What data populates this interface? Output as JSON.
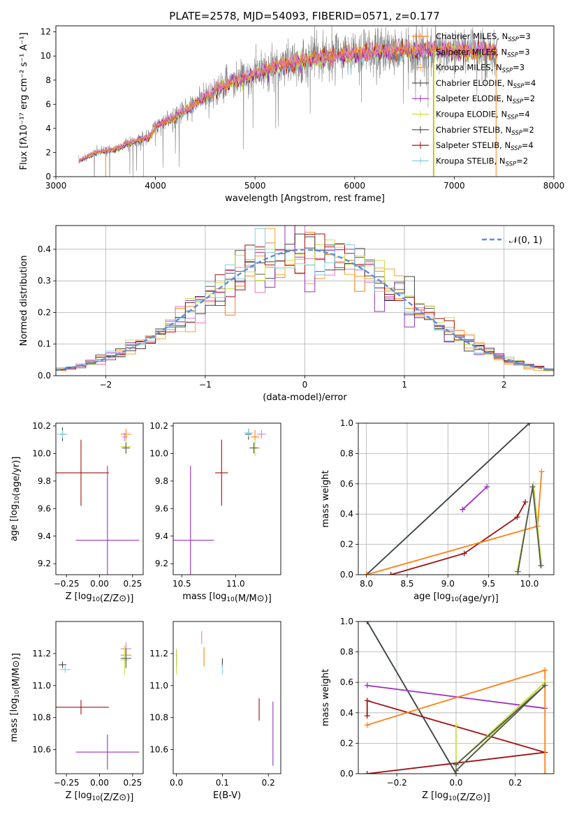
{
  "figure_title": "PLATE=2578, MJD=54093, FIBERID=0571, z=0.177",
  "colors": {
    "Chabrier MILES": "#ff7f0e",
    "Salpeter MILES": "#e377c2",
    "Kroupa MILES": "#ff9f2e",
    "Chabrier ELODIE": "#555555",
    "Salpeter ELODIE": "#9b30c0",
    "Kroupa ELODIE": "#c8e040",
    "Chabrier STELIB": "#404040",
    "Salpeter STELIB": "#a01010",
    "Kroupa STELIB": "#80d0e0",
    "data": "#808080",
    "normal": "#5b8fd6"
  },
  "chart_data": [
    {
      "type": "line",
      "title": "PLATE=2578, MJD=54093, FIBERID=0571, z=0.177",
      "xlabel": "wavelength [Angstrom, rest frame]",
      "ylabel": "Flux [fλ10⁻¹⁷ erg cm⁻² s⁻¹ A⁻¹]",
      "xlim": [
        3000,
        8000
      ],
      "ylim": [
        0,
        12.5
      ],
      "xticks": [
        3000,
        4000,
        5000,
        6000,
        7000,
        8000
      ],
      "yticks": [
        0,
        2,
        4,
        6,
        8,
        10,
        12
      ],
      "grid": false,
      "legend": "top-right",
      "legend_entries": [
        "Chabrier MILES, N",
        "Salpeter MILES, N",
        "Kroupa MILES, N",
        "Chabrier ELODIE, N",
        "Salpeter ELODIE, N",
        "Kroupa ELODIE, N",
        "Chabrier STELIB, N",
        "Salpeter STELIB, N",
        "Kroupa STELIB, N"
      ],
      "legend_sub": "SSP",
      "legend_n": [
        3,
        3,
        3,
        4,
        2,
        4,
        2,
        4,
        2
      ],
      "continuum": [
        [
          3230,
          1.3
        ],
        [
          3400,
          2.0
        ],
        [
          3600,
          2.3
        ],
        [
          3800,
          3.0
        ],
        [
          3950,
          3.3
        ],
        [
          4000,
          4.2
        ],
        [
          4200,
          5.0
        ],
        [
          4400,
          6.0
        ],
        [
          4700,
          7.7
        ],
        [
          5000,
          8.5
        ],
        [
          5300,
          9.3
        ],
        [
          5700,
          9.9
        ],
        [
          6000,
          10.2
        ],
        [
          6400,
          10.4
        ],
        [
          6600,
          10.5
        ],
        [
          6900,
          10.5
        ],
        [
          7200,
          10.4
        ],
        [
          7430,
          10.3
        ]
      ],
      "spectrum_range": [
        3230,
        7430
      ]
    },
    {
      "type": "bar",
      "xlabel": "(data-model)/error",
      "ylabel": "Normed distribution",
      "xlim": [
        -2.5,
        2.5
      ],
      "ylim": [
        0,
        0.475
      ],
      "xticks": [
        -2,
        -1,
        0,
        1,
        2
      ],
      "yticks": [
        0.0,
        0.1,
        0.2,
        0.3,
        0.4
      ],
      "grid": true,
      "legend": "top-right",
      "legend_label": "𝒩(0, 1)",
      "bins": 50,
      "bin_width": 0.1
    },
    {
      "type": "scatter",
      "xlabel": "Z [log10(Z/Z⊙)]",
      "ylabel": "age  [log10(age/yr)]",
      "xlim": [
        -0.33,
        0.33
      ],
      "ylim": [
        9.12,
        10.22
      ],
      "xticks": [
        -0.25,
        0.0,
        0.25
      ],
      "yticks": [
        9.2,
        9.4,
        9.6,
        9.8,
        10.0,
        10.2
      ],
      "grid": false,
      "points": [
        {
          "x": 0.06,
          "y": 9.37,
          "xerr": 0.24,
          "yerr": 0.54,
          "series": "Salpeter ELODIE"
        },
        {
          "x": -0.14,
          "y": 9.86,
          "xerr": 0.21,
          "yerr": 0.24,
          "series": "Salpeter STELIB"
        },
        {
          "x": -0.28,
          "y": 10.14,
          "xerr": 0.02,
          "yerr": 0.05,
          "series": "Chabrier STELIB"
        },
        {
          "x": -0.28,
          "y": 10.14,
          "xerr": 0.04,
          "yerr": 0.03,
          "series": "Kroupa STELIB"
        },
        {
          "x": 0.2,
          "y": 10.14,
          "xerr": 0.04,
          "yerr": 0.04,
          "series": "Chabrier MILES"
        },
        {
          "x": 0.19,
          "y": 10.12,
          "xerr": 0.02,
          "yerr": 0.03,
          "series": "Salpeter MILES"
        },
        {
          "x": 0.2,
          "y": 10.05,
          "xerr": 0.04,
          "yerr": 0.06,
          "series": "Kroupa ELODIE"
        },
        {
          "x": 0.2,
          "y": 10.04,
          "xerr": 0.03,
          "yerr": 0.04,
          "series": "Chabrier ELODIE"
        }
      ]
    },
    {
      "type": "scatter",
      "xlabel": "mass [log10(M/M⊙)]",
      "xlim": [
        10.42,
        11.42
      ],
      "ylim": [
        9.12,
        10.22
      ],
      "xticks": [
        10.5,
        11.0
      ],
      "yticks": [
        9.2,
        9.4,
        9.6,
        9.8,
        10.0,
        10.2
      ],
      "grid": false,
      "points": [
        {
          "x": 10.58,
          "y": 9.37,
          "xerr": 0.22,
          "yerr": 0.54,
          "series": "Salpeter ELODIE"
        },
        {
          "x": 10.87,
          "y": 9.86,
          "xerr": 0.06,
          "yerr": 0.24,
          "series": "Salpeter STELIB"
        },
        {
          "x": 11.12,
          "y": 10.14,
          "xerr": 0.03,
          "yerr": 0.04,
          "series": "Chabrier STELIB"
        },
        {
          "x": 11.12,
          "y": 10.15,
          "xerr": 0.04,
          "yerr": 0.03,
          "series": "Kroupa STELIB"
        },
        {
          "x": 11.24,
          "y": 10.14,
          "xerr": 0.04,
          "yerr": 0.03,
          "series": "Salpeter MILES"
        },
        {
          "x": 11.18,
          "y": 10.12,
          "xerr": 0.04,
          "yerr": 0.05,
          "series": "Chabrier MILES"
        },
        {
          "x": 11.18,
          "y": 10.04,
          "xerr": 0.05,
          "yerr": 0.06,
          "series": "Kroupa ELODIE"
        },
        {
          "x": 11.17,
          "y": 10.04,
          "xerr": 0.04,
          "yerr": 0.04,
          "series": "Chabrier ELODIE"
        }
      ]
    },
    {
      "type": "line",
      "xlabel": "age  [log10(age/yr)]",
      "ylabel": "mass weight",
      "xlim": [
        7.9,
        10.3
      ],
      "ylim": [
        0.0,
        1.0
      ],
      "xticks": [
        8.0,
        8.5,
        9.0,
        9.5,
        10.0
      ],
      "yticks": [
        0.0,
        0.2,
        0.4,
        0.6,
        0.8,
        1.0
      ],
      "grid": true,
      "series": [
        {
          "series": "Kroupa STELIB",
          "x": [
            8.0,
            10.0
          ],
          "y": [
            0.0,
            1.0
          ]
        },
        {
          "series": "Chabrier STELIB",
          "x": [
            8.0,
            10.0
          ],
          "y": [
            0.0,
            1.0
          ]
        },
        {
          "series": "Salpeter ELODIE",
          "x": [
            9.18,
            9.48
          ],
          "y": [
            0.43,
            0.58
          ]
        },
        {
          "series": "Salpeter STELIB",
          "x": [
            8.3,
            9.2,
            9.85,
            9.95
          ],
          "y": [
            0.0,
            0.14,
            0.38,
            0.48
          ]
        },
        {
          "series": "Chabrier MILES",
          "x": [
            8.0,
            10.1,
            10.15
          ],
          "y": [
            0.0,
            0.32,
            0.68
          ]
        },
        {
          "series": "Kroupa ELODIE",
          "x": [
            9.85,
            10.05,
            10.15
          ],
          "y": [
            0.02,
            0.6,
            0.06
          ]
        },
        {
          "series": "Chabrier ELODIE",
          "x": [
            9.86,
            10.04,
            10.14
          ],
          "y": [
            0.02,
            0.58,
            0.06
          ]
        }
      ]
    },
    {
      "type": "scatter",
      "xlabel": "Z [log10(Z/Z⊙)]",
      "ylabel": "mass [log10(M/M⊙)]",
      "xlim": [
        -0.33,
        0.33
      ],
      "ylim": [
        10.45,
        11.4
      ],
      "xticks": [
        -0.25,
        0.0,
        0.25
      ],
      "yticks": [
        10.6,
        10.8,
        11.0,
        11.2
      ],
      "grid": false,
      "points": [
        {
          "x": 0.06,
          "y": 10.585,
          "xerr": 0.24,
          "yerr": 0.11,
          "series": "Salpeter ELODIE"
        },
        {
          "x": -0.14,
          "y": 10.865,
          "xerr": 0.21,
          "yerr": 0.045,
          "series": "Salpeter STELIB"
        },
        {
          "x": -0.28,
          "y": 11.13,
          "xerr": 0.03,
          "yerr": 0.02,
          "series": "Chabrier STELIB"
        },
        {
          "x": -0.26,
          "y": 11.1,
          "xerr": 0.04,
          "yerr": 0.02,
          "series": "Kroupa STELIB"
        },
        {
          "x": 0.2,
          "y": 11.23,
          "xerr": 0.04,
          "yerr": 0.04,
          "series": "Salpeter MILES"
        },
        {
          "x": 0.2,
          "y": 11.19,
          "xerr": 0.04,
          "yerr": 0.05,
          "series": "Chabrier MILES"
        },
        {
          "x": 0.19,
          "y": 11.16,
          "xerr": 0.03,
          "yerr": 0.09,
          "series": "Kroupa ELODIE"
        },
        {
          "x": 0.2,
          "y": 11.17,
          "xerr": 0.04,
          "yerr": 0.06,
          "series": "Chabrier ELODIE"
        }
      ]
    },
    {
      "type": "scatter",
      "xlabel": "E(B-V)",
      "xlim": [
        -0.007,
        0.227
      ],
      "ylim": [
        10.45,
        11.4
      ],
      "xticks": [
        0.0,
        0.1,
        0.2
      ],
      "yticks": [
        10.6,
        10.8,
        11.0,
        11.2
      ],
      "grid": false,
      "points": [
        {
          "x": 0.21,
          "y": 10.7,
          "xerr": 0.0,
          "yerr": 0.2,
          "series": "Salpeter ELODIE"
        },
        {
          "x": 0.18,
          "y": 10.85,
          "xerr": 0.0,
          "yerr": 0.07,
          "series": "Salpeter STELIB"
        },
        {
          "x": 0.055,
          "y": 11.3,
          "xerr": 0.0,
          "yerr": 0.04,
          "series": "Salpeter MILES"
        },
        {
          "x": 0.06,
          "y": 11.18,
          "xerr": 0.0,
          "yerr": 0.06,
          "series": "Chabrier MILES"
        },
        {
          "x": 0.1,
          "y": 11.14,
          "xerr": 0.0,
          "yerr": 0.03,
          "series": "Chabrier STELIB"
        },
        {
          "x": 0.1,
          "y": 11.1,
          "xerr": 0.0,
          "yerr": 0.03,
          "series": "Kroupa STELIB"
        },
        {
          "x": 0.0,
          "y": 11.17,
          "xerr": 0.0,
          "yerr": 0.05,
          "series": "Chabrier ELODIE"
        },
        {
          "x": 0.0,
          "y": 11.15,
          "xerr": 0.0,
          "yerr": 0.08,
          "series": "Kroupa ELODIE"
        }
      ]
    },
    {
      "type": "line",
      "xlabel": "Z [log10(Z/Z⊙)]",
      "ylabel": "mass weight",
      "xlim": [
        -0.33,
        0.33
      ],
      "ylim": [
        0.0,
        1.0
      ],
      "xticks": [
        -0.2,
        0.0,
        0.2
      ],
      "yticks": [
        0.0,
        0.2,
        0.4,
        0.6,
        0.8,
        1.0
      ],
      "grid": true,
      "series": [
        {
          "series": "Kroupa STELIB",
          "x": [
            -0.3,
            0.0
          ],
          "y": [
            1.0,
            0.0
          ]
        },
        {
          "series": "Chabrier STELIB",
          "x": [
            -0.3,
            0.0
          ],
          "y": [
            1.0,
            0.0
          ]
        },
        {
          "series": "Salpeter ELODIE",
          "x": [
            -0.3,
            0.3
          ],
          "y": [
            0.58,
            0.43
          ]
        },
        {
          "series": "Salpeter STELIB",
          "x": [
            -0.3,
            -0.3,
            0.3,
            -0.3
          ],
          "y": [
            0.38,
            0.48,
            0.14,
            0.0
          ]
        },
        {
          "series": "Chabrier MILES",
          "x": [
            -0.3,
            0.3,
            0.3
          ],
          "y": [
            0.32,
            0.68,
            0.0
          ]
        },
        {
          "series": "Kroupa ELODIE",
          "x": [
            0.0,
            0.0,
            0.3,
            0.0
          ],
          "y": [
            0.32,
            0.02,
            0.6,
            0.06
          ]
        },
        {
          "series": "Chabrier ELODIE",
          "x": [
            0.0,
            0.3,
            0.0
          ],
          "y": [
            0.02,
            0.58,
            0.06
          ]
        }
      ]
    }
  ]
}
